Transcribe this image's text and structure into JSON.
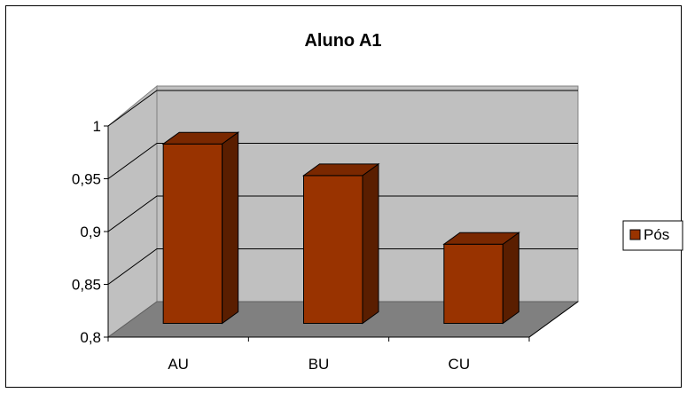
{
  "chart_data": {
    "type": "bar",
    "title": "Aluno A1",
    "categories": [
      "AU",
      "BU",
      "CU"
    ],
    "series": [
      {
        "name": "Pós",
        "values": [
          0.97,
          0.94,
          0.875
        ]
      }
    ],
    "ylim": [
      0.8,
      1
    ],
    "yticks": [
      0.8,
      0.85,
      0.9,
      0.95,
      1
    ],
    "ytick_labels": [
      "0,8",
      "0,85",
      "0,9",
      "0,95",
      "1"
    ],
    "grid": true,
    "legend_position": "right",
    "colors": {
      "bar_front": "#993300",
      "bar_side": "#5a1e00",
      "bar_top": "#7a2800",
      "wall": "#c0c0c0",
      "floor": "#808080"
    }
  }
}
